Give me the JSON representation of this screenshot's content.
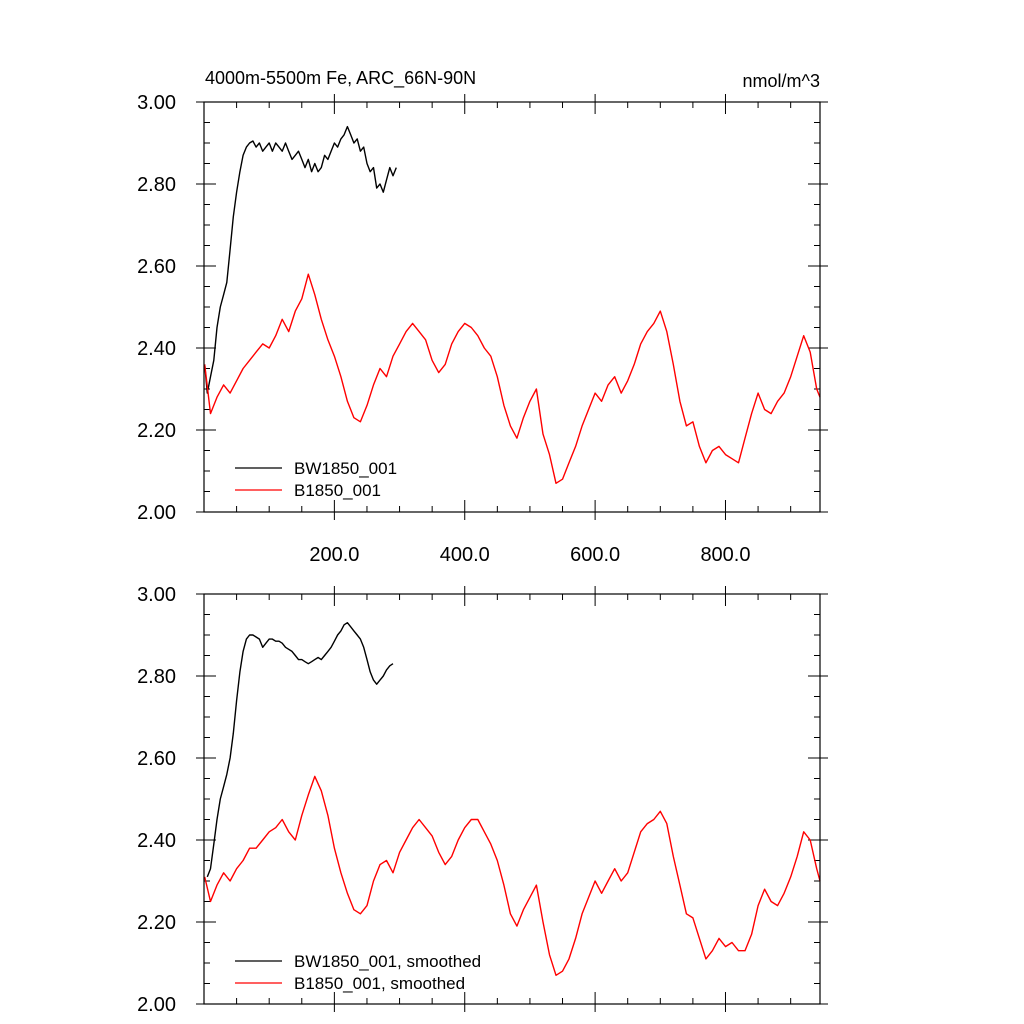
{
  "chart_data": [
    {
      "type": "line",
      "title": "4000m-5500m Fe, ARC_66N-90N",
      "units": "nmol/m^3",
      "xlim": [
        0,
        945
      ],
      "ylim": [
        2.0,
        3.0
      ],
      "xticks": [
        200,
        400,
        600,
        800
      ],
      "xtick_labels": [
        "200.0",
        "400.0",
        "600.0",
        "800.0"
      ],
      "yticks": [
        2.0,
        2.2,
        2.4,
        2.6,
        2.8,
        3.0
      ],
      "ytick_labels": [
        "2.00",
        "2.20",
        "2.40",
        "2.60",
        "2.80",
        "3.00"
      ],
      "legend_position": "bottom-left",
      "series": [
        {
          "name": "BW1850_001",
          "color": "#000000",
          "x": [
            1,
            5,
            10,
            15,
            20,
            25,
            30,
            35,
            40,
            45,
            50,
            55,
            60,
            65,
            70,
            75,
            80,
            85,
            90,
            95,
            100,
            105,
            110,
            115,
            120,
            125,
            130,
            135,
            140,
            145,
            150,
            155,
            160,
            165,
            170,
            175,
            180,
            185,
            190,
            195,
            200,
            205,
            210,
            215,
            220,
            225,
            230,
            235,
            240,
            245,
            250,
            255,
            260,
            265,
            270,
            275,
            280,
            285,
            290,
            295
          ],
          "y": [
            2.36,
            2.29,
            2.33,
            2.37,
            2.45,
            2.5,
            2.53,
            2.56,
            2.64,
            2.72,
            2.78,
            2.83,
            2.87,
            2.89,
            2.9,
            2.905,
            2.89,
            2.9,
            2.88,
            2.89,
            2.9,
            2.88,
            2.9,
            2.89,
            2.88,
            2.9,
            2.88,
            2.86,
            2.87,
            2.88,
            2.86,
            2.84,
            2.86,
            2.83,
            2.85,
            2.83,
            2.84,
            2.87,
            2.86,
            2.88,
            2.9,
            2.89,
            2.91,
            2.92,
            2.94,
            2.92,
            2.9,
            2.91,
            2.88,
            2.89,
            2.85,
            2.83,
            2.84,
            2.79,
            2.8,
            2.78,
            2.81,
            2.84,
            2.82,
            2.84
          ]
        },
        {
          "name": "B1850_001",
          "color": "#ff0000",
          "x": [
            1,
            10,
            20,
            30,
            40,
            50,
            60,
            70,
            80,
            90,
            100,
            110,
            120,
            130,
            140,
            150,
            160,
            170,
            180,
            190,
            200,
            210,
            220,
            230,
            240,
            250,
            260,
            270,
            280,
            290,
            300,
            310,
            320,
            330,
            340,
            350,
            360,
            370,
            380,
            390,
            400,
            410,
            420,
            430,
            440,
            450,
            460,
            470,
            480,
            490,
            500,
            510,
            520,
            530,
            540,
            550,
            560,
            570,
            580,
            590,
            600,
            610,
            620,
            630,
            640,
            650,
            660,
            670,
            680,
            690,
            700,
            710,
            720,
            730,
            740,
            750,
            760,
            770,
            780,
            790,
            800,
            810,
            820,
            830,
            840,
            850,
            860,
            870,
            880,
            890,
            900,
            910,
            920,
            930,
            940,
            945
          ],
          "y": [
            2.36,
            2.24,
            2.28,
            2.31,
            2.29,
            2.32,
            2.35,
            2.37,
            2.39,
            2.41,
            2.4,
            2.43,
            2.47,
            2.44,
            2.49,
            2.52,
            2.58,
            2.53,
            2.47,
            2.42,
            2.38,
            2.33,
            2.27,
            2.23,
            2.22,
            2.26,
            2.31,
            2.35,
            2.33,
            2.38,
            2.41,
            2.44,
            2.46,
            2.44,
            2.42,
            2.37,
            2.34,
            2.36,
            2.41,
            2.44,
            2.46,
            2.45,
            2.43,
            2.4,
            2.38,
            2.33,
            2.26,
            2.21,
            2.18,
            2.23,
            2.27,
            2.3,
            2.19,
            2.14,
            2.07,
            2.08,
            2.12,
            2.16,
            2.21,
            2.25,
            2.29,
            2.27,
            2.31,
            2.33,
            2.29,
            2.32,
            2.36,
            2.41,
            2.44,
            2.46,
            2.49,
            2.44,
            2.36,
            2.27,
            2.21,
            2.22,
            2.16,
            2.12,
            2.15,
            2.16,
            2.14,
            2.13,
            2.12,
            2.18,
            2.24,
            2.29,
            2.25,
            2.24,
            2.27,
            2.29,
            2.33,
            2.38,
            2.43,
            2.39,
            2.3,
            2.28
          ]
        }
      ]
    },
    {
      "type": "line",
      "xlim": [
        0,
        945
      ],
      "ylim": [
        2.0,
        3.0
      ],
      "xticks": [
        200,
        400,
        600,
        800
      ],
      "yticks": [
        2.0,
        2.2,
        2.4,
        2.6,
        2.8,
        3.0
      ],
      "ytick_labels": [
        "2.00",
        "2.20",
        "2.40",
        "2.60",
        "2.80",
        "3.00"
      ],
      "legend_position": "bottom-left",
      "series": [
        {
          "name": "BW1850_001, smoothed",
          "color": "#000000",
          "x": [
            5,
            10,
            15,
            20,
            25,
            30,
            35,
            40,
            45,
            50,
            55,
            60,
            65,
            70,
            75,
            80,
            85,
            90,
            95,
            100,
            105,
            110,
            115,
            120,
            125,
            130,
            135,
            140,
            145,
            150,
            155,
            160,
            165,
            170,
            175,
            180,
            185,
            190,
            195,
            200,
            205,
            210,
            215,
            220,
            225,
            230,
            235,
            240,
            245,
            250,
            255,
            260,
            265,
            270,
            275,
            280,
            285,
            290
          ],
          "y": [
            2.31,
            2.33,
            2.39,
            2.45,
            2.5,
            2.53,
            2.56,
            2.6,
            2.66,
            2.74,
            2.81,
            2.86,
            2.89,
            2.9,
            2.9,
            2.895,
            2.89,
            2.87,
            2.88,
            2.89,
            2.89,
            2.885,
            2.885,
            2.88,
            2.87,
            2.865,
            2.86,
            2.85,
            2.84,
            2.84,
            2.835,
            2.83,
            2.835,
            2.84,
            2.845,
            2.84,
            2.85,
            2.86,
            2.87,
            2.885,
            2.9,
            2.91,
            2.925,
            2.93,
            2.92,
            2.91,
            2.9,
            2.89,
            2.87,
            2.84,
            2.81,
            2.79,
            2.78,
            2.79,
            2.8,
            2.815,
            2.825,
            2.83
          ]
        },
        {
          "name": "B1850_001, smoothed",
          "color": "#ff0000",
          "x": [
            1,
            10,
            20,
            30,
            40,
            50,
            60,
            70,
            80,
            90,
            100,
            110,
            120,
            130,
            140,
            150,
            160,
            170,
            180,
            190,
            200,
            210,
            220,
            230,
            240,
            250,
            260,
            270,
            280,
            290,
            300,
            310,
            320,
            330,
            340,
            350,
            360,
            370,
            380,
            390,
            400,
            410,
            420,
            430,
            440,
            450,
            460,
            470,
            480,
            490,
            500,
            510,
            520,
            530,
            540,
            550,
            560,
            570,
            580,
            590,
            600,
            610,
            620,
            630,
            640,
            650,
            660,
            670,
            680,
            690,
            700,
            710,
            720,
            730,
            740,
            750,
            760,
            770,
            780,
            790,
            800,
            810,
            820,
            830,
            840,
            850,
            860,
            870,
            880,
            890,
            900,
            910,
            920,
            930,
            940,
            945
          ],
          "y": [
            2.31,
            2.25,
            2.29,
            2.32,
            2.3,
            2.33,
            2.35,
            2.38,
            2.38,
            2.4,
            2.42,
            2.43,
            2.45,
            2.42,
            2.4,
            2.46,
            2.51,
            2.555,
            2.52,
            2.46,
            2.38,
            2.32,
            2.27,
            2.23,
            2.22,
            2.24,
            2.3,
            2.34,
            2.35,
            2.32,
            2.37,
            2.4,
            2.43,
            2.45,
            2.43,
            2.41,
            2.37,
            2.34,
            2.36,
            2.4,
            2.43,
            2.45,
            2.45,
            2.42,
            2.39,
            2.35,
            2.29,
            2.22,
            2.19,
            2.23,
            2.26,
            2.29,
            2.2,
            2.12,
            2.07,
            2.08,
            2.11,
            2.16,
            2.22,
            2.26,
            2.3,
            2.27,
            2.3,
            2.33,
            2.3,
            2.32,
            2.37,
            2.42,
            2.44,
            2.45,
            2.47,
            2.44,
            2.36,
            2.29,
            2.22,
            2.21,
            2.16,
            2.11,
            2.13,
            2.16,
            2.14,
            2.15,
            2.13,
            2.13,
            2.17,
            2.24,
            2.28,
            2.25,
            2.24,
            2.27,
            2.31,
            2.36,
            2.42,
            2.4,
            2.33,
            2.3
          ]
        }
      ]
    }
  ]
}
